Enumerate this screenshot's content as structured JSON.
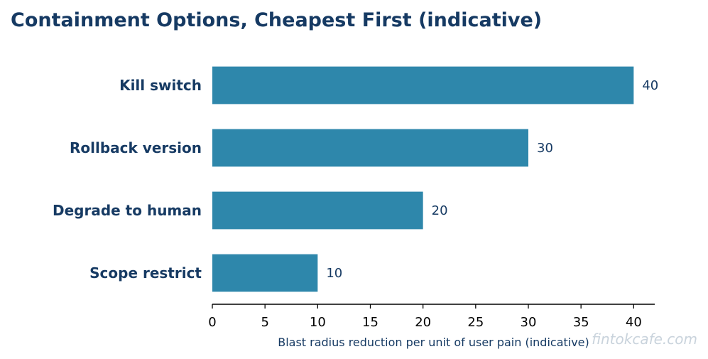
{
  "chart_data": {
    "type": "bar",
    "orientation": "horizontal",
    "title": "Containment Options, Cheapest First (indicative)",
    "categories": [
      "Kill switch",
      "Rollback version",
      "Degrade to human",
      "Scope restrict"
    ],
    "values": [
      40,
      30,
      20,
      10
    ],
    "value_labels": [
      "40",
      "30",
      "20",
      "10"
    ],
    "xlabel": "Blast radius reduction per unit of user pain (indicative)",
    "ylabel": "",
    "xlim": [
      0,
      42
    ],
    "xticks": [
      0,
      5,
      10,
      15,
      20,
      25,
      30,
      35,
      40
    ],
    "xtick_labels": [
      "0",
      "5",
      "10",
      "15",
      "20",
      "25",
      "30",
      "35",
      "40"
    ],
    "grid": false,
    "bar_color": "#2e87ab"
  },
  "colors": {
    "title": "#163a63",
    "bar": "#2e87ab",
    "axis": "#000000",
    "watermark": "#c9d3dc"
  },
  "watermark": "fintokcafe.com"
}
